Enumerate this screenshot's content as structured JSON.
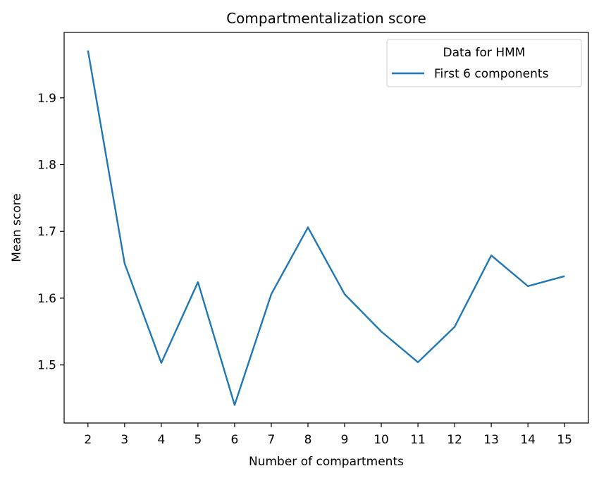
{
  "chart_data": {
    "type": "line",
    "title": "Compartmentalization score",
    "xlabel": "Number of compartments",
    "ylabel": "Mean score",
    "x": [
      2,
      3,
      4,
      5,
      6,
      7,
      8,
      9,
      10,
      11,
      12,
      13,
      14,
      15
    ],
    "xticks": [
      "2",
      "3",
      "4",
      "5",
      "6",
      "7",
      "8",
      "9",
      "10",
      "11",
      "12",
      "13",
      "14",
      "15"
    ],
    "yticks": [
      1.5,
      1.6,
      1.7,
      1.8,
      1.9
    ],
    "ytick_labels": [
      "1.5",
      "1.6",
      "1.7",
      "1.8",
      "1.9"
    ],
    "xlim": [
      1.35,
      15.65
    ],
    "ylim": [
      1.413,
      1.998
    ],
    "grid": false,
    "legend": {
      "title": "Data for HMM",
      "placement": "top-right"
    },
    "series": [
      {
        "name": "First 6 components",
        "color": "#1f77b4",
        "values": [
          1.971,
          1.652,
          1.503,
          1.624,
          1.44,
          1.606,
          1.706,
          1.606,
          1.55,
          1.504,
          1.557,
          1.664,
          1.618,
          1.633
        ]
      }
    ]
  }
}
